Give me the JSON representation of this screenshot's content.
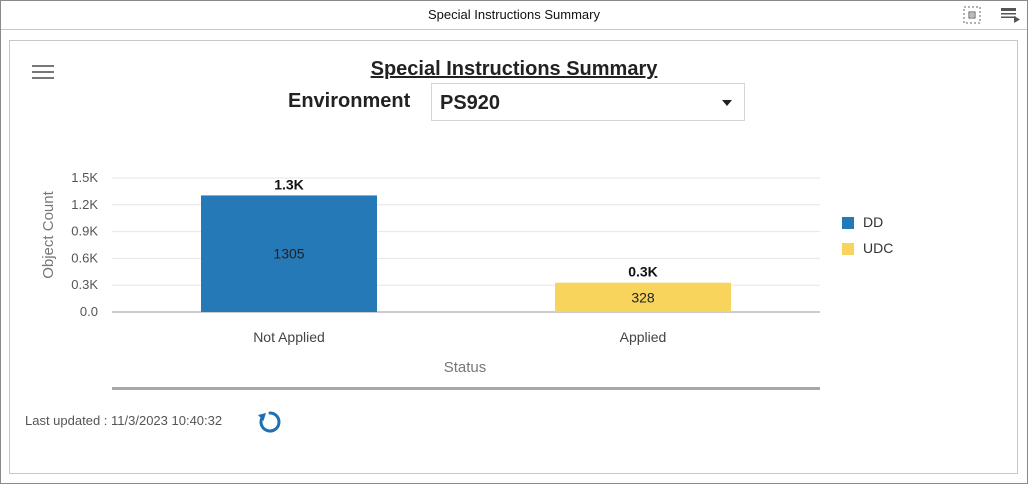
{
  "window": {
    "title": "Special Instructions Summary"
  },
  "titlebar_icons": {
    "maximize": "expand-icon",
    "menu": "window-menu-icon"
  },
  "panel": {
    "menu_icon": "hamburger-menu-icon"
  },
  "header": {
    "title": "Special Instructions Summary",
    "environment_label": "Environment",
    "environment_value": "PS920"
  },
  "chart_data": {
    "type": "bar",
    "categories": [
      "Not Applied",
      "Applied"
    ],
    "series": [
      {
        "name": "DD",
        "color": "#2679b7",
        "values": [
          1305,
          null
        ]
      },
      {
        "name": "UDC",
        "color": "#f8d45c",
        "values": [
          null,
          328
        ]
      }
    ],
    "bar_values": [
      1305,
      328
    ],
    "bar_labels": [
      "1305",
      "328"
    ],
    "top_labels": [
      "1.3K",
      "0.3K"
    ],
    "bar_colors": [
      "#2679b7",
      "#f8d45c"
    ],
    "ylim": [
      0,
      1500
    ],
    "yticks": [
      0,
      300,
      600,
      900,
      1200,
      1500
    ],
    "ytick_labels": [
      "0.0",
      "0.3K",
      "0.6K",
      "0.9K",
      "1.2K",
      "1.5K"
    ],
    "xlabel": "Status",
    "ylabel": "Object Count",
    "grid": true,
    "legend_position": "right"
  },
  "footer": {
    "last_updated": "Last updated : 11/3/2023 10:40:32",
    "refresh_icon": "refresh-icon"
  }
}
